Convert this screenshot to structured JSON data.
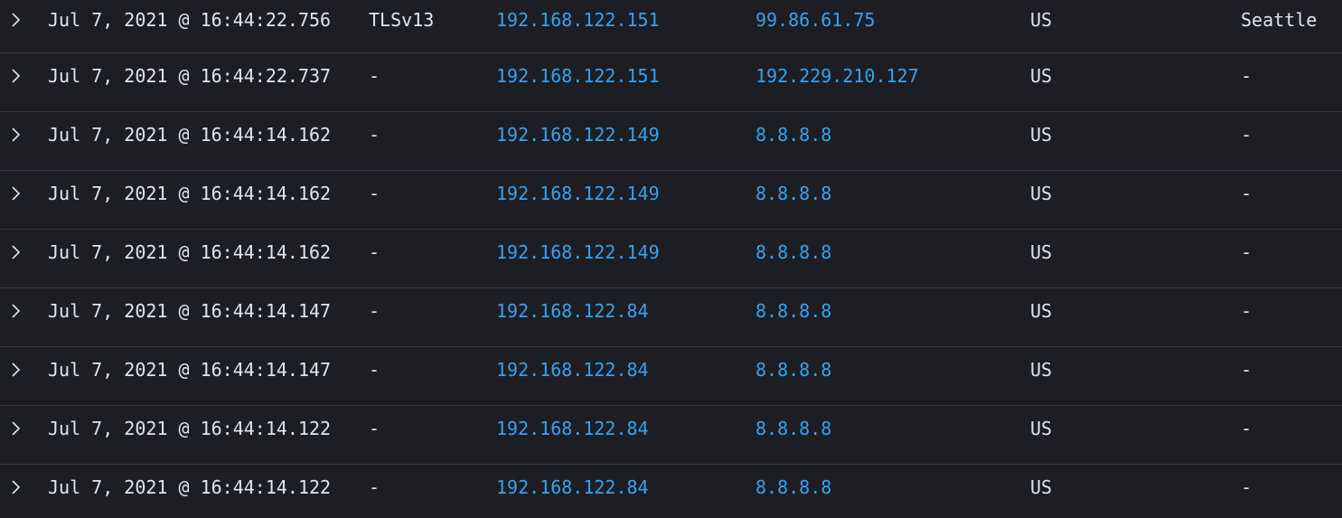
{
  "rows": [
    {
      "time": "Jul 7, 2021 @ 16:44:22.756",
      "tls": "TLSv13",
      "src_ip": "192.168.122.151",
      "dst_ip": "99.86.61.75",
      "country": "US",
      "city": "Seattle"
    },
    {
      "time": "Jul 7, 2021 @ 16:44:22.737",
      "tls": "-",
      "src_ip": "192.168.122.151",
      "dst_ip": "192.229.210.127",
      "country": "US",
      "city": "-"
    },
    {
      "time": "Jul 7, 2021 @ 16:44:14.162",
      "tls": "-",
      "src_ip": "192.168.122.149",
      "dst_ip": "8.8.8.8",
      "country": "US",
      "city": "-"
    },
    {
      "time": "Jul 7, 2021 @ 16:44:14.162",
      "tls": "-",
      "src_ip": "192.168.122.149",
      "dst_ip": "8.8.8.8",
      "country": "US",
      "city": "-"
    },
    {
      "time": "Jul 7, 2021 @ 16:44:14.162",
      "tls": "-",
      "src_ip": "192.168.122.149",
      "dst_ip": "8.8.8.8",
      "country": "US",
      "city": "-"
    },
    {
      "time": "Jul 7, 2021 @ 16:44:14.147",
      "tls": "-",
      "src_ip": "192.168.122.84",
      "dst_ip": "8.8.8.8",
      "country": "US",
      "city": "-"
    },
    {
      "time": "Jul 7, 2021 @ 16:44:14.147",
      "tls": "-",
      "src_ip": "192.168.122.84",
      "dst_ip": "8.8.8.8",
      "country": "US",
      "city": "-"
    },
    {
      "time": "Jul 7, 2021 @ 16:44:14.122",
      "tls": "-",
      "src_ip": "192.168.122.84",
      "dst_ip": "8.8.8.8",
      "country": "US",
      "city": "-"
    },
    {
      "time": "Jul 7, 2021 @ 16:44:14.122",
      "tls": "-",
      "src_ip": "192.168.122.84",
      "dst_ip": "8.8.8.8",
      "country": "US",
      "city": "-"
    }
  ],
  "colors": {
    "background": "#1d1e24",
    "text": "#dfe5ef",
    "link": "#36a2ef",
    "divider": "#343741"
  },
  "icons": {
    "expand": "chevron-right-icon"
  }
}
